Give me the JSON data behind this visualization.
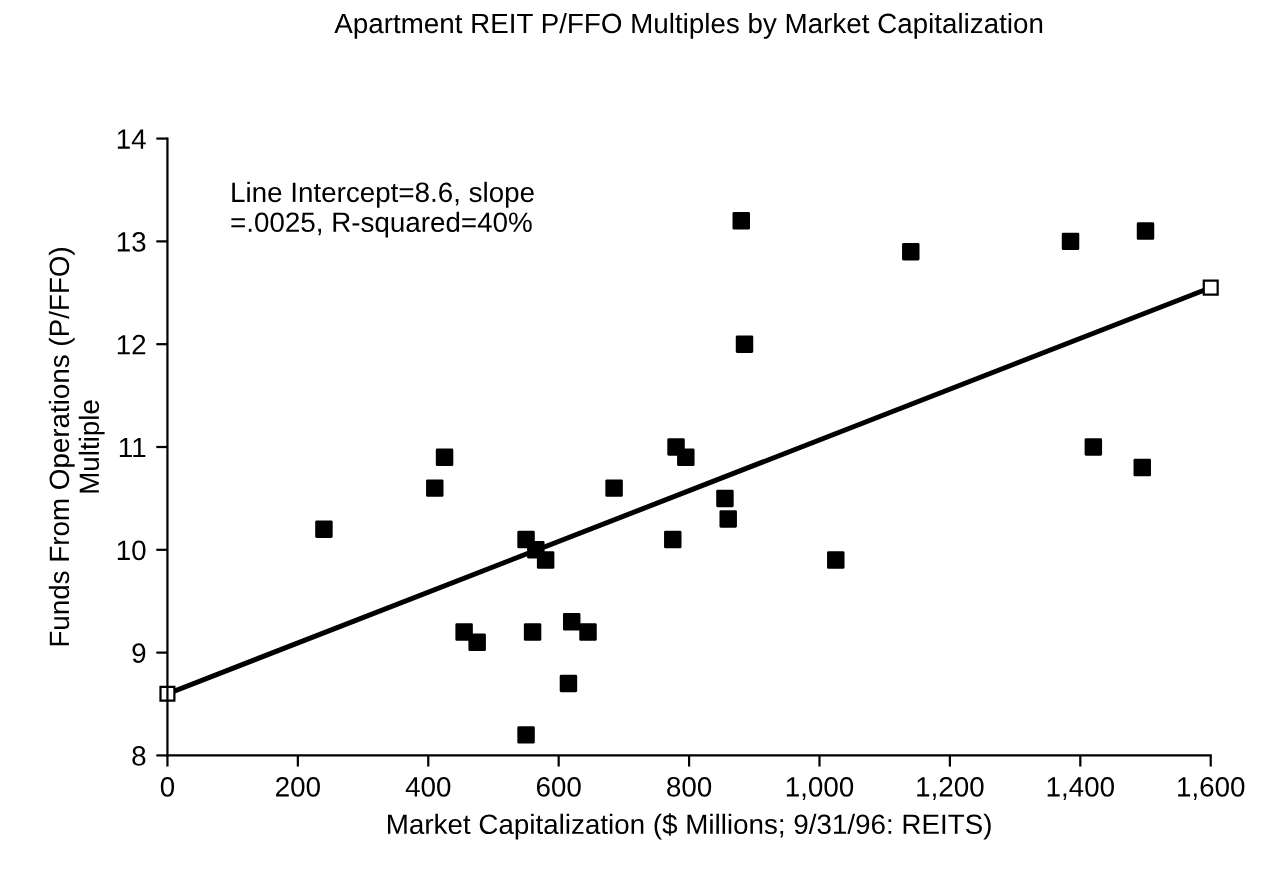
{
  "chart_data": {
    "type": "scatter",
    "title": "Apartment REIT P/FFO Multiples by Market Capitalization",
    "xlabel": "Market Capitalization ($ Millions; 9/31/96: REITS)",
    "ylabel": "Funds From Operations (P/FFO)\nMultiple",
    "annotations": [
      "Line Intercept=8.6, slope\n=.0025, R-squared=40%"
    ],
    "xlim": [
      0,
      1600
    ],
    "ylim": [
      8,
      14
    ],
    "xticks": [
      0,
      200,
      400,
      600,
      800,
      {
        "value": 1000,
        "label": "1,000"
      },
      {
        "value": 1200,
        "label": "1,200"
      },
      {
        "value": 1400,
        "label": "1,400"
      },
      {
        "value": 1600,
        "label": "1,600"
      }
    ],
    "yticks": [
      8,
      9,
      10,
      11,
      12,
      13,
      14
    ],
    "grid": false,
    "legend": false,
    "series": [
      {
        "color": "#000000",
        "marker": "square",
        "x": [
          240,
          410,
          425,
          455,
          475,
          550,
          550,
          560,
          565,
          580,
          615,
          620,
          645,
          685,
          775,
          780,
          795,
          855,
          860,
          880,
          885,
          1025,
          1140,
          1385,
          1420,
          1495,
          1500
        ],
        "values": [
          10.2,
          10.6,
          10.9,
          9.2,
          9.1,
          8.2,
          10.1,
          9.2,
          10.0,
          9.9,
          8.7,
          9.3,
          9.2,
          10.6,
          10.1,
          11.0,
          10.9,
          10.5,
          10.3,
          13.2,
          12.0,
          9.9,
          12.9,
          13.0,
          11.0,
          10.8,
          13.1
        ]
      },
      {
        "type": "line",
        "color": "#000000",
        "marker": "square",
        "line_style": "solid",
        "x": [
          0,
          1600
        ],
        "values": [
          8.6,
          12.55
        ]
      }
    ]
  }
}
